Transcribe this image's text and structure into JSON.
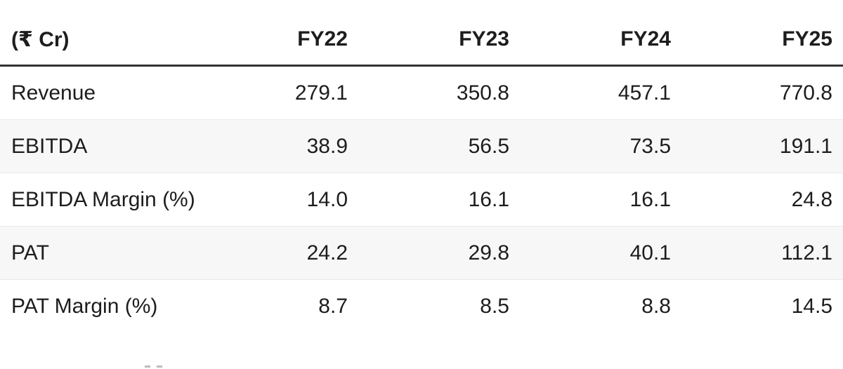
{
  "table": {
    "unit_header": "(₹ Cr)",
    "columns": [
      "FY22",
      "FY23",
      "FY24",
      "FY25"
    ],
    "rows": [
      {
        "label": "Revenue",
        "values": [
          "279.1",
          "350.8",
          "457.1",
          "770.8"
        ]
      },
      {
        "label": "EBITDA",
        "values": [
          "38.9",
          "56.5",
          "73.5",
          "191.1"
        ]
      },
      {
        "label": "EBITDA Margin (%)",
        "values": [
          "14.0",
          "16.1",
          "16.1",
          "24.8"
        ]
      },
      {
        "label": "PAT",
        "values": [
          "24.2",
          "29.8",
          "40.1",
          "112.1"
        ]
      },
      {
        "label": "PAT Margin (%)",
        "values": [
          "8.7",
          "8.5",
          "8.8",
          "14.5"
        ]
      }
    ]
  },
  "colors": {
    "text": "#1d1d1d",
    "header_underline": "#333333",
    "row_divider": "#e8e8e8",
    "zebra_stripe": "#f7f7f7",
    "background": "#ffffff"
  },
  "chart_data": {
    "type": "table",
    "unit": "₹ Cr",
    "columns": [
      "FY22",
      "FY23",
      "FY24",
      "FY25"
    ],
    "rows": [
      {
        "metric": "Revenue",
        "values": [
          279.1,
          350.8,
          457.1,
          770.8
        ]
      },
      {
        "metric": "EBITDA",
        "values": [
          38.9,
          56.5,
          73.5,
          191.1
        ]
      },
      {
        "metric": "EBITDA Margin (%)",
        "values": [
          14.0,
          16.1,
          16.1,
          24.8
        ]
      },
      {
        "metric": "PAT",
        "values": [
          24.2,
          29.8,
          40.1,
          112.1
        ]
      },
      {
        "metric": "PAT Margin (%)",
        "values": [
          8.7,
          8.5,
          8.8,
          14.5
        ]
      }
    ]
  }
}
